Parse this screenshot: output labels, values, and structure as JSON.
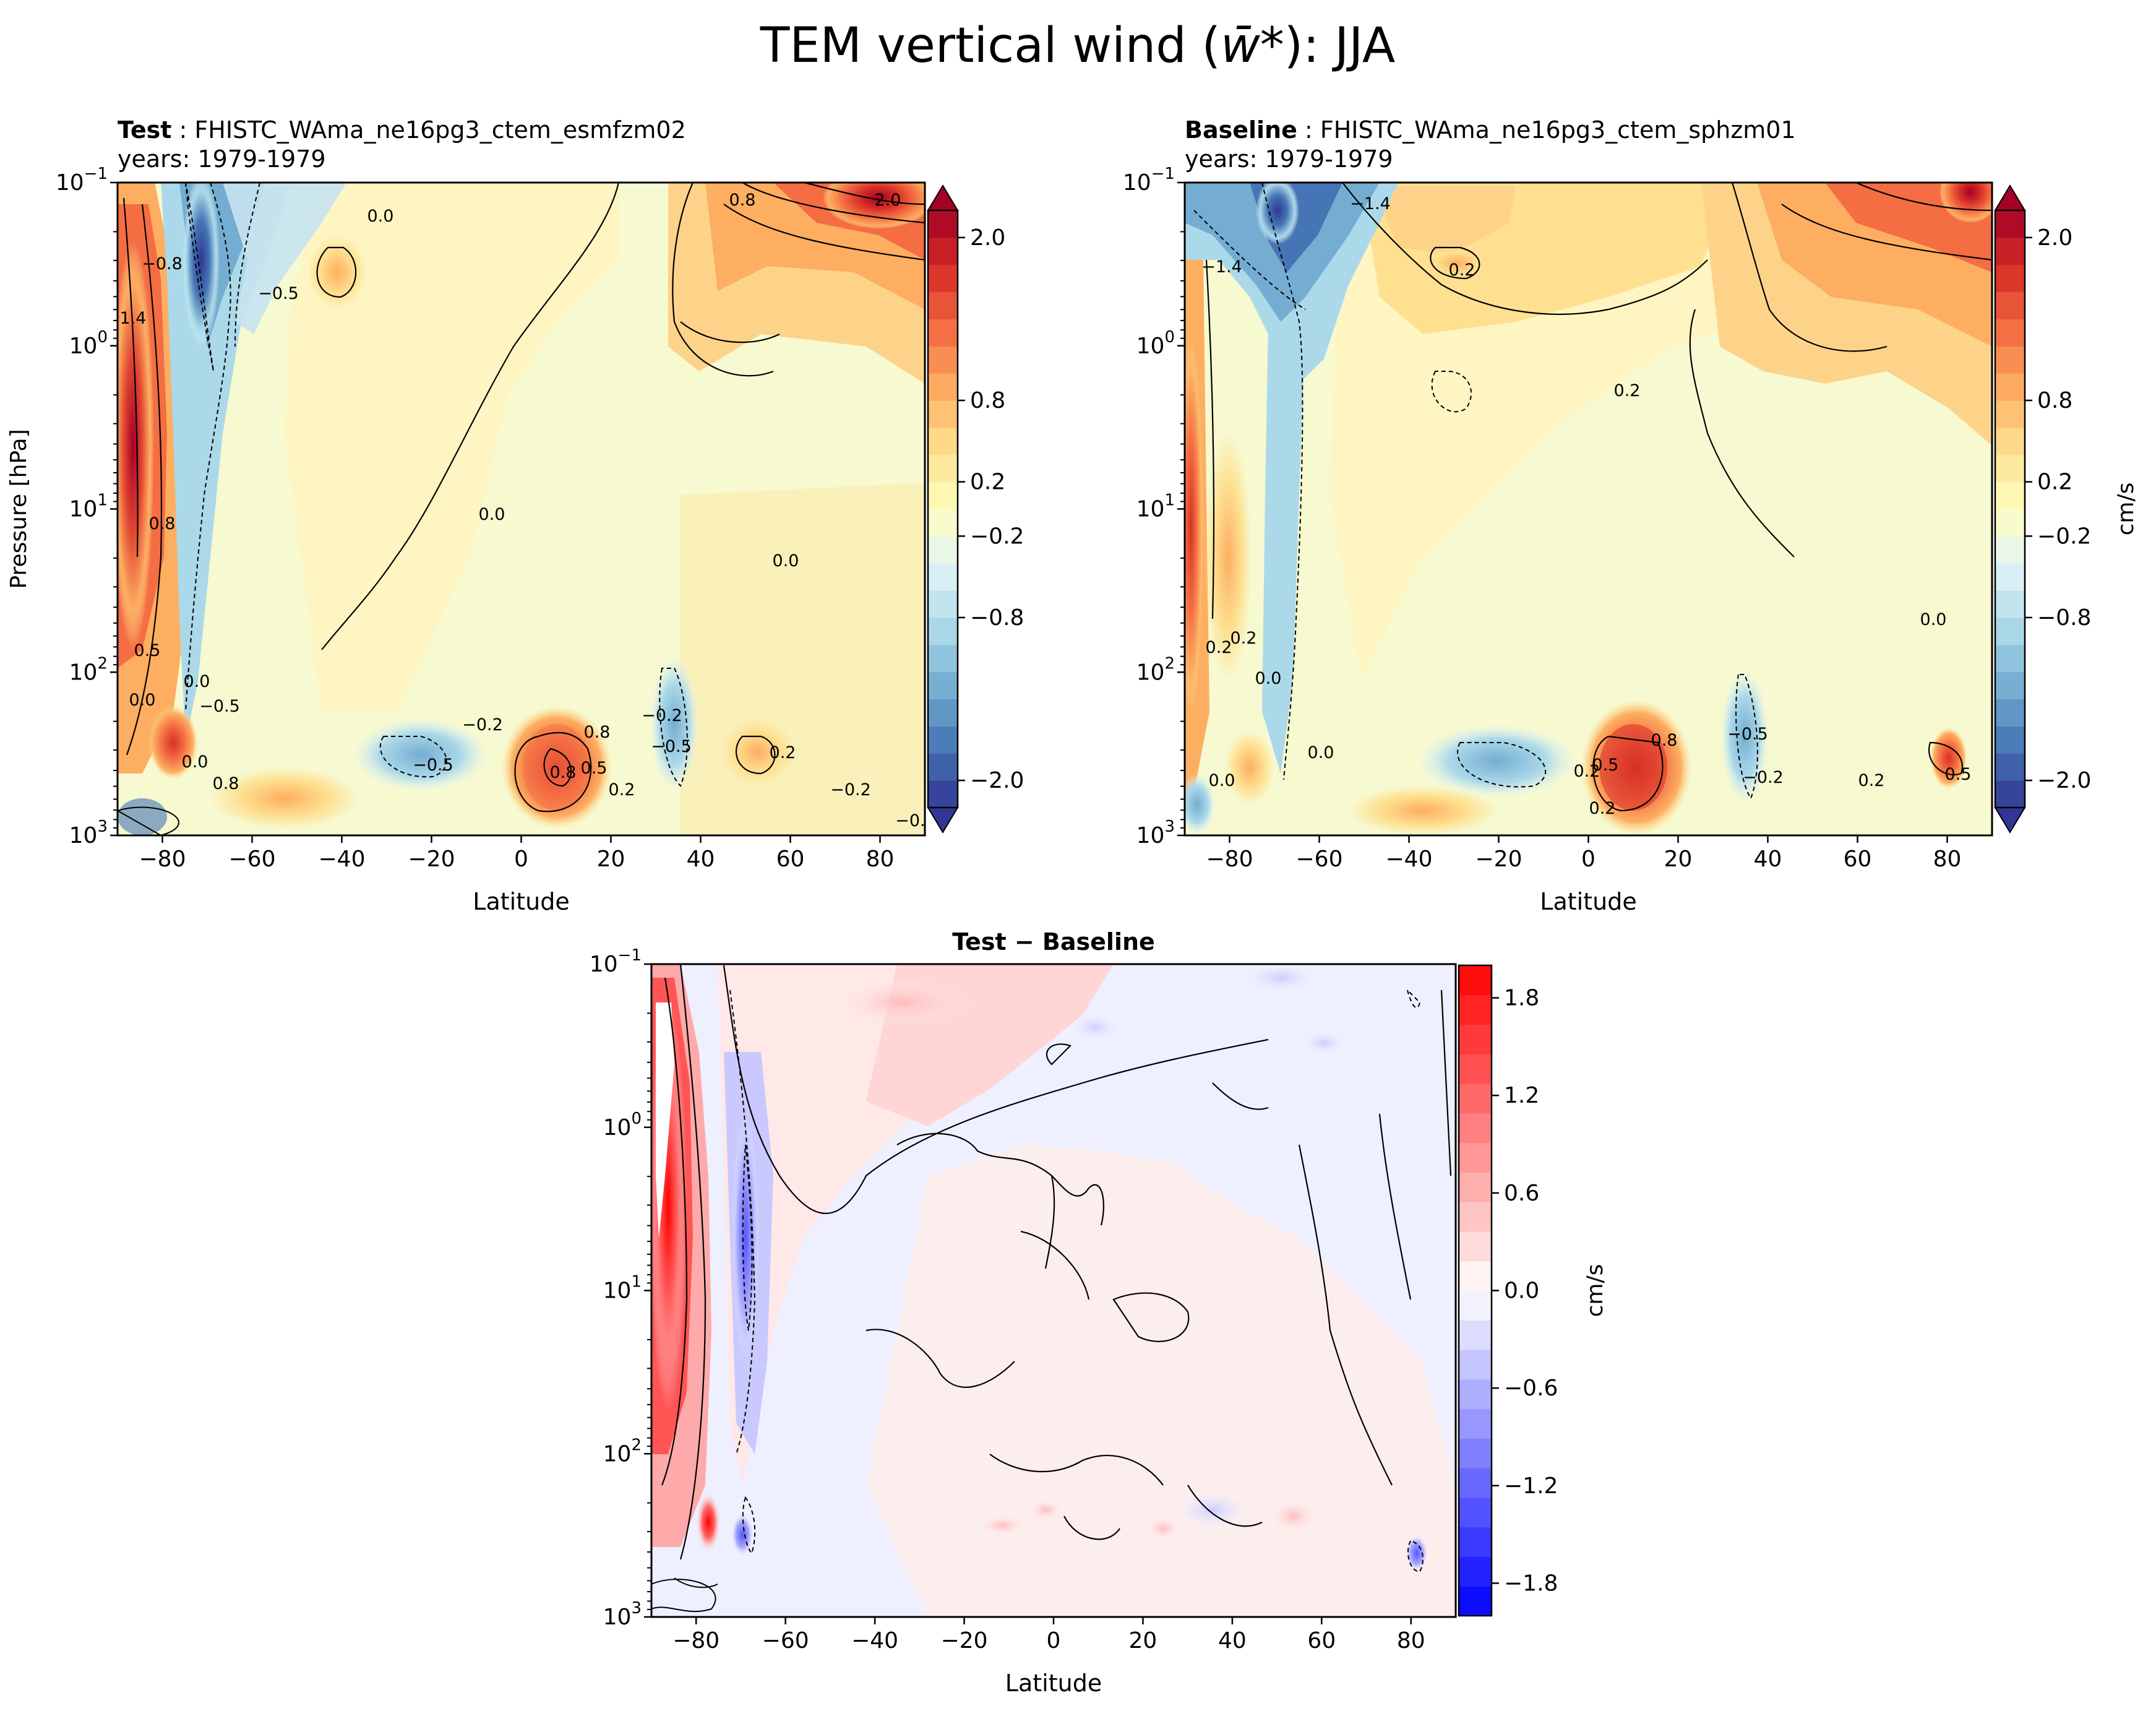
{
  "figure": {
    "title_prefix": "TEM vertical wind (",
    "title_symbol": "w̄*",
    "title_suffix": "): JJA"
  },
  "chart_data": [
    {
      "type": "heatmap",
      "panel": "test",
      "title_bold": "Test",
      "title_sep": " : ",
      "title_case": "FHISTC_WAma_ne16pg3_ctem_esmfzm02",
      "subtitle": "years: 1979-1979",
      "xlabel": "Latitude",
      "ylabel": "Pressure [hPa]",
      "xlim": [
        -90,
        90
      ],
      "ylim_hpa": [
        1000,
        0.1
      ],
      "y_scale": "log",
      "xticks": [
        "−80",
        "−60",
        "−40",
        "−20",
        "0",
        "20",
        "40",
        "60",
        "80"
      ],
      "xtick_values": [
        -80,
        -60,
        -40,
        -20,
        0,
        20,
        40,
        60,
        80
      ],
      "yticks": [
        {
          "base": "10",
          "exp": "−1",
          "value": 0.1
        },
        {
          "base": "10",
          "exp": "0",
          "value": 1
        },
        {
          "base": "10",
          "exp": "1",
          "value": 10
        },
        {
          "base": "10",
          "exp": "2",
          "value": 100
        },
        {
          "base": "10",
          "exp": "3",
          "value": 1000
        }
      ],
      "colorbar": {
        "ticks": [
          "2.0",
          "0.8",
          "0.2",
          "−0.2",
          "−0.8",
          "−2.0"
        ],
        "tick_values": [
          2.0,
          0.8,
          0.2,
          -0.2,
          -0.8,
          -2.0
        ],
        "label": "",
        "colormap": "RdYlBu_r",
        "extend": "both"
      },
      "contour_labels": [
        "0.0",
        "0.8",
        "2.0",
        "−0.8",
        "−0.5",
        "1.4",
        "0.0",
        "0.8",
        "0.0",
        "0.5",
        "0.0",
        "−0.2",
        "−0.5",
        "0.8",
        "0.5",
        "0.8",
        "−0.2",
        "−0.5",
        "0.2",
        "0.2",
        "−0.2",
        "0.0",
        "0.0",
        "0.8",
        "−0.5",
        "−0.2"
      ],
      "features": [
        {
          "lat": -85,
          "p_hpa": 3,
          "value": 1.8
        },
        {
          "lat": -72,
          "p_hpa": 0.5,
          "value": -1.6
        },
        {
          "lat": 15,
          "p_hpa": 250,
          "value": 0.9
        },
        {
          "lat": 80,
          "p_hpa": 0.15,
          "value": 2.0
        }
      ]
    },
    {
      "type": "heatmap",
      "panel": "baseline",
      "title_bold": "Baseline",
      "title_sep": " : ",
      "title_case": "FHISTC_WAma_ne16pg3_ctem_sphzm01",
      "subtitle": "years: 1979-1979",
      "xlabel": "Latitude",
      "ylabel": "",
      "xlim": [
        -90,
        90
      ],
      "ylim_hpa": [
        1000,
        0.1
      ],
      "y_scale": "log",
      "xticks": [
        "−80",
        "−60",
        "−40",
        "−20",
        "0",
        "20",
        "40",
        "60",
        "80"
      ],
      "xtick_values": [
        -80,
        -60,
        -40,
        -20,
        0,
        20,
        40,
        60,
        80
      ],
      "yticks": [
        {
          "base": "10",
          "exp": "−1",
          "value": 0.1
        },
        {
          "base": "10",
          "exp": "0",
          "value": 1
        },
        {
          "base": "10",
          "exp": "1",
          "value": 10
        },
        {
          "base": "10",
          "exp": "2",
          "value": 100
        },
        {
          "base": "10",
          "exp": "3",
          "value": 1000
        }
      ],
      "colorbar": {
        "ticks": [
          "2.0",
          "0.8",
          "0.2",
          "−0.2",
          "−0.8",
          "−2.0"
        ],
        "tick_values": [
          2.0,
          0.8,
          0.2,
          -0.2,
          -0.8,
          -2.0
        ],
        "label": "cm/s",
        "colormap": "RdYlBu_r",
        "extend": "both"
      },
      "contour_labels": [
        "−1.4",
        "−1.4",
        "0.2",
        "0.2",
        "0.2",
        "0.2",
        "0.0",
        "0.0",
        "0.5",
        "0.8",
        "−0.5",
        "0.2",
        "−0.2",
        "0.0",
        "0.2",
        "0.5",
        "0.2",
        "0.0"
      ],
      "features": [
        {
          "lat": -70,
          "p_hpa": 0.2,
          "value": -1.6
        },
        {
          "lat": 15,
          "p_hpa": 280,
          "value": 1.0
        },
        {
          "lat": 82,
          "p_hpa": 0.12,
          "value": 1.8
        }
      ]
    },
    {
      "type": "heatmap",
      "panel": "difference",
      "title_bold": "Test − Baseline",
      "xlabel": "Latitude",
      "ylabel": "",
      "xlim": [
        -90,
        90
      ],
      "ylim_hpa": [
        1000,
        0.1
      ],
      "y_scale": "log",
      "xticks": [
        "−80",
        "−60",
        "−40",
        "−20",
        "0",
        "20",
        "40",
        "60",
        "80"
      ],
      "xtick_values": [
        -80,
        -60,
        -40,
        -20,
        0,
        20,
        40,
        60,
        80
      ],
      "yticks": [
        {
          "base": "10",
          "exp": "−1",
          "value": 0.1
        },
        {
          "base": "10",
          "exp": "0",
          "value": 1
        },
        {
          "base": "10",
          "exp": "1",
          "value": 10
        },
        {
          "base": "10",
          "exp": "2",
          "value": 100
        },
        {
          "base": "10",
          "exp": "3",
          "value": 1000
        }
      ],
      "colorbar": {
        "ticks": [
          "1.8",
          "1.2",
          "0.6",
          "0.0",
          "−0.6",
          "−1.2",
          "−1.8"
        ],
        "tick_values": [
          1.8,
          1.2,
          0.6,
          0.0,
          -0.6,
          -1.2,
          -1.8
        ],
        "label": "cm/s",
        "colormap": "bwr",
        "extend": "neither",
        "range": [
          -2.0,
          2.0
        ]
      },
      "features": [
        {
          "lat": -86,
          "p_hpa": 2,
          "value": 2.0
        },
        {
          "lat": -68,
          "p_hpa": 8,
          "value": -0.9
        }
      ]
    }
  ]
}
